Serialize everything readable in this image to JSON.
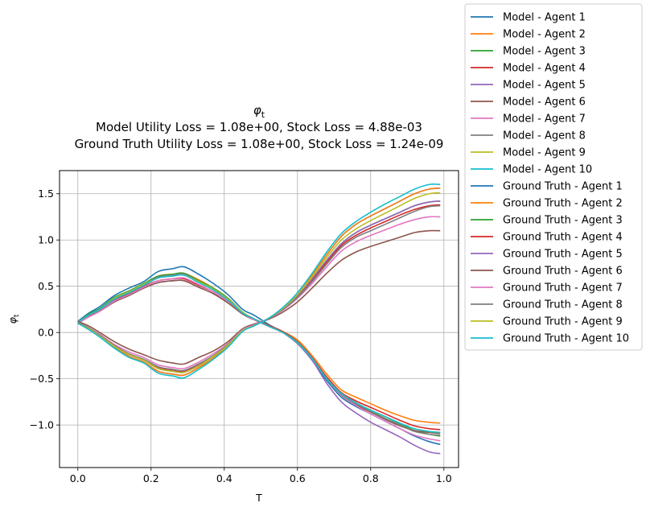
{
  "chart_data": {
    "type": "line",
    "title_symbol": "φ",
    "title_symbol_sub": "t",
    "title_line2": "Model Utility Loss = 1.08e+00, Stock Loss = 4.88e-03",
    "title_line3": "Ground Truth Utility Loss = 1.08e+00, Stock Loss = 1.24e-09",
    "xlabel": "T",
    "ylabel_symbol": "φ",
    "ylabel_sub": "t",
    "xlim": [
      -0.05,
      1.04
    ],
    "ylim": [
      -1.46,
      1.75
    ],
    "xticks": [
      0.0,
      0.2,
      0.4,
      0.6,
      0.8,
      1.0
    ],
    "xtick_labels": [
      "0.0",
      "0.2",
      "0.4",
      "0.6",
      "0.8",
      "1.0"
    ],
    "yticks": [
      -1.0,
      -0.5,
      0.0,
      0.5,
      1.0,
      1.5
    ],
    "ytick_labels": [
      "−1.0",
      "−0.5",
      "0.0",
      "0.5",
      "1.0",
      "1.5"
    ],
    "grid": true,
    "legend_placement": "outside-right",
    "x": [
      0.0,
      0.03,
      0.06,
      0.1,
      0.14,
      0.18,
      0.22,
      0.26,
      0.29,
      0.33,
      0.37,
      0.41,
      0.45,
      0.48,
      0.52,
      0.56,
      0.6,
      0.64,
      0.68,
      0.72,
      0.76,
      0.8,
      0.84,
      0.88,
      0.92,
      0.96,
      0.99
    ],
    "series": [
      {
        "name": "Model - Agent 1",
        "color": "#1f77b4",
        "values": [
          0.12,
          0.21,
          0.28,
          0.4,
          0.48,
          0.55,
          0.66,
          0.69,
          0.71,
          0.63,
          0.53,
          0.41,
          0.25,
          0.19,
          0.09,
          0.0,
          -0.12,
          -0.3,
          -0.52,
          -0.7,
          -0.8,
          -0.88,
          -0.96,
          -1.04,
          -1.12,
          -1.18,
          -1.21
        ]
      },
      {
        "name": "Model - Agent 2",
        "color": "#ff7f0e",
        "values": [
          0.11,
          0.19,
          0.25,
          0.37,
          0.44,
          0.52,
          0.61,
          0.63,
          0.64,
          0.57,
          0.48,
          0.37,
          0.22,
          0.15,
          0.08,
          0.01,
          -0.08,
          -0.25,
          -0.45,
          -0.62,
          -0.7,
          -0.77,
          -0.84,
          -0.9,
          -0.95,
          -0.97,
          -0.98
        ]
      },
      {
        "name": "Model - Agent 3",
        "color": "#2ca02c",
        "values": [
          0.11,
          0.2,
          0.26,
          0.38,
          0.45,
          0.53,
          0.61,
          0.63,
          0.64,
          0.56,
          0.48,
          0.37,
          0.22,
          0.15,
          0.07,
          0.0,
          -0.11,
          -0.28,
          -0.5,
          -0.66,
          -0.76,
          -0.84,
          -0.91,
          -0.99,
          -1.06,
          -1.1,
          -1.12
        ]
      },
      {
        "name": "Model - Agent 4",
        "color": "#d62728",
        "values": [
          0.1,
          0.18,
          0.24,
          0.35,
          0.42,
          0.5,
          0.56,
          0.58,
          0.58,
          0.51,
          0.44,
          0.34,
          0.21,
          0.15,
          0.08,
          0.01,
          -0.1,
          -0.27,
          -0.48,
          -0.65,
          -0.74,
          -0.81,
          -0.88,
          -0.95,
          -1.01,
          -1.04,
          -1.05
        ]
      },
      {
        "name": "Model - Agent 5",
        "color": "#9467bd",
        "values": [
          0.1,
          0.17,
          0.23,
          0.33,
          0.4,
          0.48,
          0.54,
          0.56,
          0.56,
          0.49,
          0.42,
          0.32,
          0.2,
          0.14,
          0.07,
          0.0,
          -0.12,
          -0.3,
          -0.55,
          -0.75,
          -0.87,
          -0.97,
          -1.05,
          -1.13,
          -1.22,
          -1.29,
          -1.31
        ]
      },
      {
        "name": "Model - Agent 6",
        "color": "#8c564b",
        "values": [
          0.1,
          0.17,
          0.23,
          0.33,
          0.4,
          0.48,
          0.54,
          0.56,
          0.56,
          0.49,
          0.42,
          0.32,
          0.2,
          0.14,
          0.07,
          0.0,
          -0.1,
          -0.28,
          -0.5,
          -0.67,
          -0.78,
          -0.86,
          -0.94,
          -1.01,
          -1.06,
          -1.08,
          -1.09
        ]
      },
      {
        "name": "Model - Agent 7",
        "color": "#e377c2",
        "values": [
          0.1,
          0.17,
          0.23,
          0.34,
          0.41,
          0.49,
          0.56,
          0.58,
          0.59,
          0.52,
          0.44,
          0.34,
          0.21,
          0.14,
          0.07,
          0.0,
          -0.11,
          -0.28,
          -0.5,
          -0.68,
          -0.79,
          -0.88,
          -0.96,
          -1.04,
          -1.11,
          -1.15,
          -1.17
        ]
      },
      {
        "name": "Model - Agent 8",
        "color": "#7f7f7f",
        "values": [
          0.11,
          0.19,
          0.25,
          0.37,
          0.44,
          0.52,
          0.6,
          0.62,
          0.63,
          0.55,
          0.47,
          0.36,
          0.22,
          0.15,
          0.07,
          0.0,
          -0.11,
          -0.28,
          -0.5,
          -0.67,
          -0.77,
          -0.85,
          -0.93,
          -1.0,
          -1.07,
          -1.1,
          -1.11
        ]
      },
      {
        "name": "Model - Agent 9",
        "color": "#bcbd22",
        "values": [
          0.11,
          0.19,
          0.25,
          0.37,
          0.44,
          0.52,
          0.59,
          0.61,
          0.62,
          0.55,
          0.47,
          0.36,
          0.22,
          0.15,
          0.07,
          0.0,
          -0.11,
          -0.28,
          -0.5,
          -0.66,
          -0.76,
          -0.84,
          -0.91,
          -0.98,
          -1.04,
          -1.07,
          -1.08
        ]
      },
      {
        "name": "Model - Agent 10",
        "color": "#17becf",
        "values": [
          0.11,
          0.19,
          0.25,
          0.36,
          0.43,
          0.51,
          0.59,
          0.61,
          0.62,
          0.54,
          0.46,
          0.35,
          0.21,
          0.15,
          0.07,
          0.0,
          -0.11,
          -0.28,
          -0.5,
          -0.66,
          -0.76,
          -0.84,
          -0.91,
          -0.98,
          -1.04,
          -1.07,
          -1.08
        ]
      },
      {
        "name": "Ground Truth - Agent 1",
        "color": "#1f77b4",
        "values": [
          0.1,
          0.04,
          -0.04,
          -0.16,
          -0.26,
          -0.32,
          -0.42,
          -0.45,
          -0.46,
          -0.38,
          -0.28,
          -0.15,
          0.02,
          0.07,
          0.15,
          0.26,
          0.42,
          0.62,
          0.84,
          1.04,
          1.17,
          1.26,
          1.34,
          1.42,
          1.5,
          1.55,
          1.56
        ]
      },
      {
        "name": "Ground Truth - Agent 2",
        "color": "#ff7f0e",
        "values": [
          0.1,
          0.04,
          -0.04,
          -0.16,
          -0.26,
          -0.32,
          -0.42,
          -0.45,
          -0.46,
          -0.38,
          -0.28,
          -0.15,
          0.02,
          0.07,
          0.15,
          0.26,
          0.42,
          0.62,
          0.84,
          1.04,
          1.17,
          1.26,
          1.34,
          1.42,
          1.5,
          1.55,
          1.56
        ]
      },
      {
        "name": "Ground Truth - Agent 3",
        "color": "#2ca02c",
        "values": [
          0.1,
          0.04,
          -0.04,
          -0.15,
          -0.24,
          -0.3,
          -0.39,
          -0.42,
          -0.43,
          -0.36,
          -0.26,
          -0.14,
          0.02,
          0.07,
          0.15,
          0.25,
          0.4,
          0.58,
          0.78,
          0.96,
          1.08,
          1.16,
          1.23,
          1.3,
          1.37,
          1.41,
          1.42
        ]
      },
      {
        "name": "Ground Truth - Agent 4",
        "color": "#d62728",
        "values": [
          0.1,
          0.04,
          -0.04,
          -0.15,
          -0.24,
          -0.3,
          -0.38,
          -0.41,
          -0.42,
          -0.35,
          -0.26,
          -0.14,
          0.02,
          0.07,
          0.15,
          0.25,
          0.39,
          0.56,
          0.76,
          0.94,
          1.05,
          1.13,
          1.2,
          1.27,
          1.33,
          1.37,
          1.38
        ]
      },
      {
        "name": "Ground Truth - Agent 5",
        "color": "#9467bd",
        "values": [
          0.1,
          0.04,
          -0.04,
          -0.15,
          -0.24,
          -0.3,
          -0.39,
          -0.42,
          -0.43,
          -0.36,
          -0.26,
          -0.14,
          0.02,
          0.07,
          0.15,
          0.25,
          0.4,
          0.58,
          0.78,
          0.96,
          1.08,
          1.16,
          1.23,
          1.3,
          1.37,
          1.41,
          1.42
        ]
      },
      {
        "name": "Ground Truth - Agent 6",
        "color": "#8c564b",
        "values": [
          0.12,
          0.07,
          0.0,
          -0.1,
          -0.18,
          -0.24,
          -0.3,
          -0.33,
          -0.34,
          -0.27,
          -0.2,
          -0.1,
          0.04,
          0.09,
          0.14,
          0.22,
          0.33,
          0.48,
          0.64,
          0.78,
          0.87,
          0.93,
          0.98,
          1.03,
          1.08,
          1.1,
          1.1
        ]
      },
      {
        "name": "Ground Truth - Agent 7",
        "color": "#e377c2",
        "values": [
          0.11,
          0.05,
          -0.02,
          -0.13,
          -0.21,
          -0.27,
          -0.35,
          -0.38,
          -0.39,
          -0.32,
          -0.23,
          -0.12,
          0.03,
          0.08,
          0.15,
          0.24,
          0.37,
          0.53,
          0.71,
          0.88,
          0.98,
          1.05,
          1.11,
          1.17,
          1.22,
          1.25,
          1.25
        ]
      },
      {
        "name": "Ground Truth - Agent 8",
        "color": "#7f7f7f",
        "values": [
          0.11,
          0.05,
          -0.03,
          -0.14,
          -0.23,
          -0.29,
          -0.37,
          -0.4,
          -0.41,
          -0.34,
          -0.25,
          -0.13,
          0.02,
          0.07,
          0.15,
          0.25,
          0.38,
          0.55,
          0.74,
          0.92,
          1.03,
          1.1,
          1.17,
          1.24,
          1.31,
          1.36,
          1.37
        ]
      },
      {
        "name": "Ground Truth - Agent 9",
        "color": "#bcbd22",
        "values": [
          0.1,
          0.04,
          -0.04,
          -0.15,
          -0.24,
          -0.3,
          -0.39,
          -0.42,
          -0.43,
          -0.36,
          -0.26,
          -0.14,
          0.02,
          0.07,
          0.15,
          0.26,
          0.41,
          0.6,
          0.81,
          1.0,
          1.12,
          1.21,
          1.29,
          1.37,
          1.45,
          1.5,
          1.51
        ]
      },
      {
        "name": "Ground Truth - Agent 10",
        "color": "#17becf",
        "values": [
          0.1,
          0.03,
          -0.05,
          -0.17,
          -0.27,
          -0.33,
          -0.44,
          -0.47,
          -0.49,
          -0.4,
          -0.29,
          -0.16,
          0.01,
          0.07,
          0.15,
          0.27,
          0.43,
          0.64,
          0.87,
          1.07,
          1.2,
          1.3,
          1.39,
          1.47,
          1.55,
          1.6,
          1.6
        ]
      }
    ]
  }
}
